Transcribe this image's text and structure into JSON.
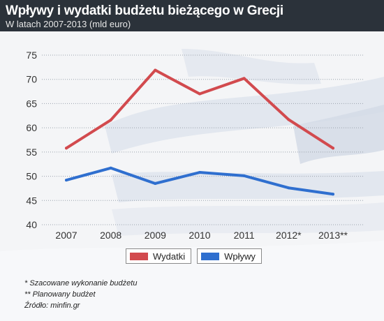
{
  "header": {
    "title": "Wpływy i wydatki budżetu bieżącego w Grecji",
    "subtitle": "W latach 2007-2013 (mld euro)"
  },
  "chart_data": {
    "type": "line",
    "categories": [
      "2007",
      "2008",
      "2009",
      "2010",
      "2011",
      "2012*",
      "2013**"
    ],
    "series": [
      {
        "name": "Wydatki",
        "color": "#d24a4e",
        "values": [
          55.8,
          61.6,
          71.9,
          67.0,
          70.2,
          61.7,
          55.8
        ]
      },
      {
        "name": "Wpływy",
        "color": "#2f6fcf",
        "values": [
          49.2,
          51.7,
          48.5,
          50.8,
          50.1,
          47.6,
          46.3
        ]
      }
    ],
    "yticks": [
      40,
      45,
      50,
      55,
      60,
      65,
      70,
      75
    ],
    "ylim": [
      40,
      75
    ],
    "grid": true,
    "legend_position": "bottom"
  },
  "legend": {
    "items": [
      {
        "label": "Wydatki",
        "color": "#d24a4e"
      },
      {
        "label": "Wpływy",
        "color": "#2f6fcf"
      }
    ]
  },
  "notes": {
    "note1": "* Szacowane wykonanie budżetu",
    "note2": "** Planowany budżet",
    "source": "Źródło: minfin.gr"
  }
}
